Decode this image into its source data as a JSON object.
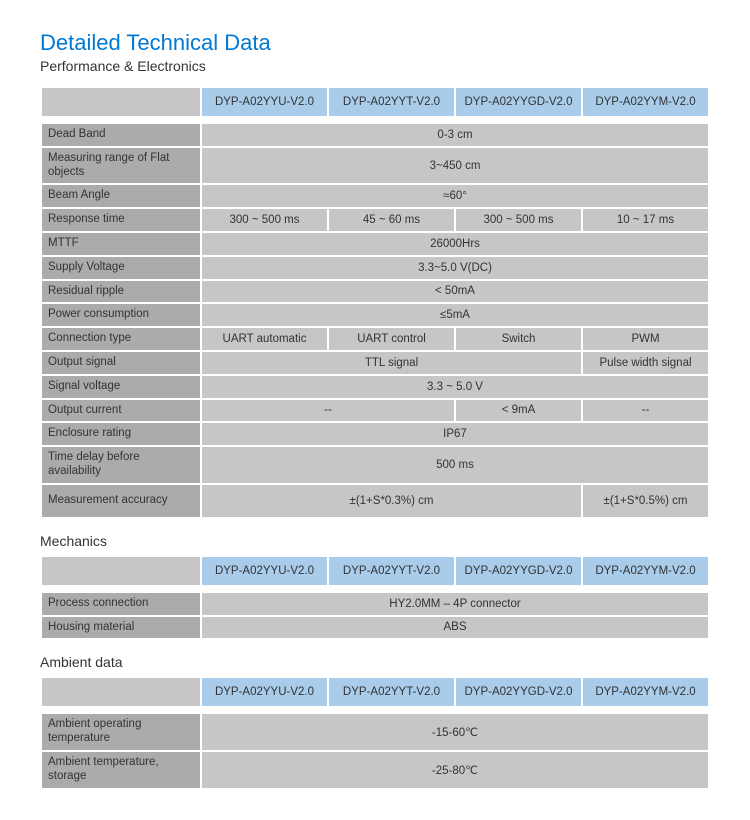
{
  "title": "Detailed Technical Data",
  "subtitle": "Performance & Electronics",
  "colors": {
    "title_color": "#0078d4",
    "header_bg": "#a8cce9",
    "label_bg": "#ababab",
    "cell_bg": "#c6c6c6",
    "text_color": "#333333",
    "page_bg": "#ffffff"
  },
  "models": [
    "DYP-A02YYU-V2.0",
    "DYP-A02YYT-V2.0",
    "DYP-A02YYGD-V2.0",
    "DYP-A02YYM-V2.0"
  ],
  "sections": {
    "performance": {
      "rows": {
        "dead_band": {
          "label": "Dead Band",
          "span4": "0-3 cm"
        },
        "measuring_range": {
          "label": "Measuring range of Flat objects",
          "span4": "3~450 cm"
        },
        "beam_angle": {
          "label": "Beam Angle",
          "span4": "≈60°"
        },
        "response_time": {
          "label": "Response time",
          "c1": "300 ~ 500 ms",
          "c2": "45 ~ 60 ms",
          "c3": "300 ~ 500 ms",
          "c4": "10 ~ 17 ms"
        },
        "mttf": {
          "label": "MTTF",
          "span4": "26000Hrs"
        },
        "supply_voltage": {
          "label": "Supply Voltage",
          "span4": "3.3~5.0 V(DC)"
        },
        "residual_ripple": {
          "label": "Residual ripple",
          "span4": "< 50mA"
        },
        "power_consumption": {
          "label": "Power consumption",
          "span4": "≤5mA"
        },
        "connection_type": {
          "label": "Connection type",
          "c1": "UART automatic",
          "c2": "UART control",
          "c3": "Switch",
          "c4": "PWM"
        },
        "output_signal": {
          "label": "Output signal",
          "span3": "TTL signal",
          "c4": "Pulse width signal"
        },
        "signal_voltage": {
          "label": "Signal voltage",
          "span4": "3.3 ~ 5.0 V"
        },
        "output_current": {
          "label": "Output current",
          "span2": "--",
          "c3": "< 9mA",
          "c4": "--"
        },
        "enclosure_rating": {
          "label": "Enclosure rating",
          "span4": "IP67"
        },
        "time_delay": {
          "label": "Time delay before availability",
          "span4": "500 ms"
        },
        "measurement_accuracy": {
          "label": "Measurement accuracy",
          "span3": "±(1+S*0.3%) cm",
          "c4": "±(1+S*0.5%) cm"
        }
      }
    },
    "mechanics": {
      "label": "Mechanics",
      "rows": {
        "process_connection": {
          "label": "Process connection",
          "span4": "HY2.0MM – 4P connector"
        },
        "housing_material": {
          "label": "Housing material",
          "span4": "ABS"
        }
      }
    },
    "ambient": {
      "label": "Ambient data",
      "rows": {
        "operating_temp": {
          "label": "Ambient operating temperature",
          "span4": "-15-60℃"
        },
        "storage_temp": {
          "label": "Ambient temperature, storage",
          "span4": "-25-80℃"
        }
      }
    }
  }
}
